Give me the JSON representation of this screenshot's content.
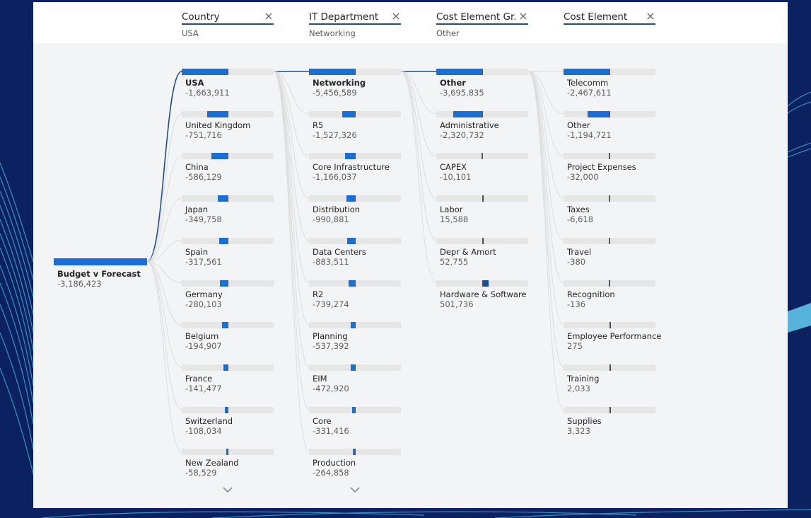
{
  "header": {
    "columns": [
      {
        "title": "Country",
        "value": "USA"
      },
      {
        "title": "IT Department",
        "value": "Networking"
      },
      {
        "title": "Cost Element Gr...",
        "value": "Other"
      },
      {
        "title": "Cost Element",
        "value": ""
      }
    ],
    "close_symbol": "×"
  },
  "root": {
    "label": "Budget v Forecast",
    "value": "-3,186,423"
  },
  "levels": [
    {
      "nodes": [
        {
          "label": "USA",
          "value": "-1,663,911",
          "selected": true
        },
        {
          "label": "United Kingdom",
          "value": "-751,716"
        },
        {
          "label": "China",
          "value": "-586,129"
        },
        {
          "label": "Japan",
          "value": "-349,758"
        },
        {
          "label": "Spain",
          "value": "-317,561"
        },
        {
          "label": "Germany",
          "value": "-280,103"
        },
        {
          "label": "Belgium",
          "value": "-194,907"
        },
        {
          "label": "France",
          "value": "-141,477"
        },
        {
          "label": "Switzerland",
          "value": "-108,034"
        },
        {
          "label": "New Zealand",
          "value": "-58,529"
        }
      ],
      "has_more": true
    },
    {
      "nodes": [
        {
          "label": "Networking",
          "value": "-5,456,589",
          "selected": true
        },
        {
          "label": "R5",
          "value": "-1,527,326"
        },
        {
          "label": "Core Infrastructure",
          "value": "-1,166,037"
        },
        {
          "label": "Distribution",
          "value": "-990,881"
        },
        {
          "label": "Data Centers",
          "value": "-883,511"
        },
        {
          "label": "R2",
          "value": "-739,274"
        },
        {
          "label": "Planning",
          "value": "-537,392"
        },
        {
          "label": "EIM",
          "value": "-472,920"
        },
        {
          "label": "Core",
          "value": "-331,416"
        },
        {
          "label": "Production",
          "value": "-264,858"
        }
      ],
      "has_more": true
    },
    {
      "nodes": [
        {
          "label": "Other",
          "value": "-3,695,835",
          "selected": true
        },
        {
          "label": "Administrative",
          "value": "-2,320,732"
        },
        {
          "label": "CAPEX",
          "value": "-10,101"
        },
        {
          "label": "Labor",
          "value": "15,588"
        },
        {
          "label": "Depr & Amort",
          "value": "52,755"
        },
        {
          "label": "Hardware & Software",
          "value": "501,736"
        }
      ],
      "has_more": false
    },
    {
      "nodes": [
        {
          "label": "Telecomm",
          "value": "-2,467,611"
        },
        {
          "label": "Other",
          "value": "-1,194,721"
        },
        {
          "label": "Project Expenses",
          "value": "-32,000"
        },
        {
          "label": "Taxes",
          "value": "-6,618"
        },
        {
          "label": "Travel",
          "value": "-380"
        },
        {
          "label": "Recognition",
          "value": "-136"
        },
        {
          "label": "Employee Performance",
          "value": "275"
        },
        {
          "label": "Training",
          "value": "2,033"
        },
        {
          "label": "Supplies",
          "value": "3,323"
        }
      ],
      "has_more": false
    }
  ],
  "colors": {
    "negative_bar": "#1a6fd6",
    "positive_bar": "#154f94",
    "track": "#e6e6e6",
    "selected_path": "#1f4e89",
    "background": "#0b2160"
  },
  "icons": {
    "close": "close-icon",
    "expand": "chevron-down-icon"
  }
}
